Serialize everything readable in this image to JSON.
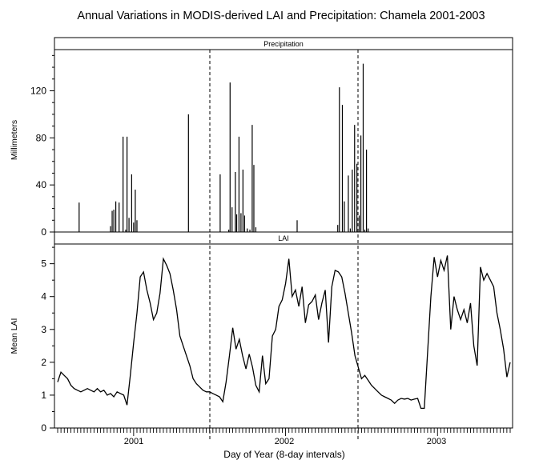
{
  "title": "Annual Variations in MODIS-derived LAI and Precipitation: Chamela 2001-2003",
  "xlabel": "Day of Year (8-day intervals)",
  "x_ticks": [
    "2001",
    "2002",
    "2003"
  ],
  "chart_data": [
    {
      "type": "bar",
      "title": "Precipitation",
      "xlabel": "Day of Year (8-day intervals)",
      "ylabel": "Millimeters",
      "ylim": [
        0,
        155
      ],
      "yticks": [
        0,
        40,
        80,
        120
      ],
      "x_unit": "8-day composite index from start of 2001 (0-137)",
      "points": [
        {
          "x": 6.5,
          "y": 25
        },
        {
          "x": 16,
          "y": 5
        },
        {
          "x": 16.5,
          "y": 18
        },
        {
          "x": 17,
          "y": 19
        },
        {
          "x": 17.6,
          "y": 26
        },
        {
          "x": 18.6,
          "y": 25
        },
        {
          "x": 19.8,
          "y": 81
        },
        {
          "x": 20.6,
          "y": 2
        },
        {
          "x": 21,
          "y": 81
        },
        {
          "x": 21.6,
          "y": 12
        },
        {
          "x": 22.4,
          "y": 49
        },
        {
          "x": 23,
          "y": 8
        },
        {
          "x": 23.5,
          "y": 36
        },
        {
          "x": 24,
          "y": 10
        },
        {
          "x": 39.6,
          "y": 100
        },
        {
          "x": 49.2,
          "y": 49
        },
        {
          "x": 51.8,
          "y": 2
        },
        {
          "x": 52.2,
          "y": 127
        },
        {
          "x": 52.8,
          "y": 21
        },
        {
          "x": 53.8,
          "y": 51
        },
        {
          "x": 54.2,
          "y": 15
        },
        {
          "x": 54.9,
          "y": 81
        },
        {
          "x": 55.5,
          "y": 16
        },
        {
          "x": 56.1,
          "y": 53
        },
        {
          "x": 56.6,
          "y": 14
        },
        {
          "x": 57.4,
          "y": 3
        },
        {
          "x": 58.2,
          "y": 2
        },
        {
          "x": 58.9,
          "y": 91
        },
        {
          "x": 59.4,
          "y": 57
        },
        {
          "x": 60,
          "y": 4
        },
        {
          "x": 72.5,
          "y": 10
        },
        {
          "x": 84.8,
          "y": 6
        },
        {
          "x": 85.3,
          "y": 123
        },
        {
          "x": 86.2,
          "y": 108
        },
        {
          "x": 86.8,
          "y": 26
        },
        {
          "x": 88,
          "y": 48
        },
        {
          "x": 88.6,
          "y": 3
        },
        {
          "x": 89.2,
          "y": 53
        },
        {
          "x": 89.9,
          "y": 91
        },
        {
          "x": 90.6,
          "y": 58
        },
        {
          "x": 91.3,
          "y": 14
        },
        {
          "x": 91.8,
          "y": 82
        },
        {
          "x": 92.5,
          "y": 143
        },
        {
          "x": 93,
          "y": 2
        },
        {
          "x": 93.5,
          "y": 70
        },
        {
          "x": 94,
          "y": 3
        }
      ]
    },
    {
      "type": "line",
      "title": "LAI",
      "xlabel": "Day of Year (8-day intervals)",
      "ylabel": "Mean LAI",
      "ylim": [
        0,
        5.6
      ],
      "yticks": [
        0,
        1,
        2,
        3,
        4,
        5
      ],
      "x_unit": "8-day composite index from start of 2001 (0-137)",
      "series": [
        {
          "values": [
            1.4,
            1.7,
            1.6,
            1.5,
            1.3,
            1.2,
            1.15,
            1.1,
            1.15,
            1.2,
            1.15,
            1.1,
            1.2,
            1.1,
            1.15,
            1.0,
            1.05,
            0.95,
            1.1,
            1.05,
            1.0,
            0.7,
            1.6,
            2.6,
            3.5,
            4.6,
            4.75,
            4.2,
            3.8,
            3.3,
            3.5,
            4.1,
            5.15,
            4.95,
            4.7,
            4.2,
            3.6,
            2.8,
            2.5,
            2.2,
            1.9,
            1.5,
            1.35,
            1.25,
            1.15,
            1.1,
            1.1,
            1.05,
            1.0,
            0.95,
            0.8,
            1.4,
            2.2,
            3.05,
            2.4,
            2.7,
            2.2,
            1.8,
            2.25,
            1.85,
            1.3,
            1.1,
            2.2,
            1.35,
            1.5,
            2.8,
            3.0,
            3.7,
            3.9,
            4.4,
            5.15,
            4.0,
            4.2,
            3.7,
            4.3,
            3.2,
            3.75,
            3.85,
            4.05,
            3.3,
            3.8,
            4.2,
            2.6,
            4.3,
            4.8,
            4.75,
            4.6,
            4.1,
            3.5,
            2.9,
            2.2,
            1.85,
            1.5,
            1.6,
            1.45,
            1.3,
            1.2,
            1.1,
            1.0,
            0.95,
            0.9,
            0.85,
            0.75,
            0.85,
            0.9,
            0.88,
            0.9,
            0.85,
            0.88,
            0.9,
            0.6,
            0.6,
            2.3,
            4.0,
            5.2,
            4.6,
            5.1,
            4.8,
            5.25,
            3.0,
            4.0,
            3.6,
            3.3,
            3.6,
            3.2,
            3.8,
            2.5,
            1.9,
            4.9,
            4.5,
            4.7,
            4.5,
            4.3,
            3.5,
            3.0,
            2.4,
            1.55,
            2.0
          ]
        }
      ]
    }
  ]
}
